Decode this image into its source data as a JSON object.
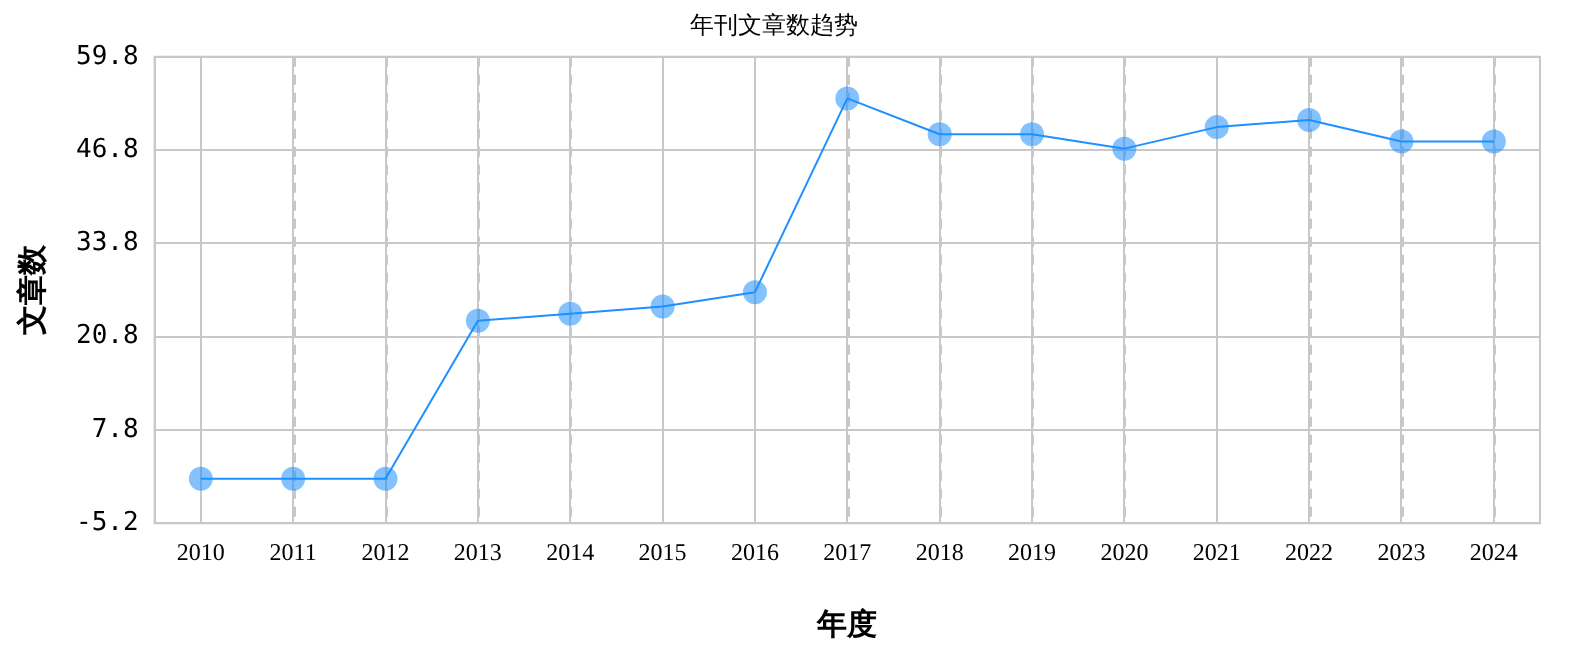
{
  "chart_data": {
    "type": "line",
    "title": "年刊文章数趋势",
    "xlabel": "年度",
    "ylabel": "文章数",
    "categories": [
      "2010",
      "2011",
      "2012",
      "2013",
      "2014",
      "2015",
      "2016",
      "2017",
      "2018",
      "2019",
      "2020",
      "2021",
      "2022",
      "2023",
      "2024"
    ],
    "series": [
      {
        "color": "#1e90ff",
        "values": [
          1,
          1,
          1,
          23,
          24,
          25,
          27,
          54,
          49,
          49,
          47,
          50,
          51,
          48,
          48
        ]
      }
    ],
    "ylim": [
      -5.2,
      59.8
    ],
    "yticks": [
      -5.2,
      7.8,
      20.8,
      33.8,
      46.8,
      59.8
    ],
    "grid": true,
    "legend": false,
    "marker": "circle",
    "line_style": "solid"
  }
}
